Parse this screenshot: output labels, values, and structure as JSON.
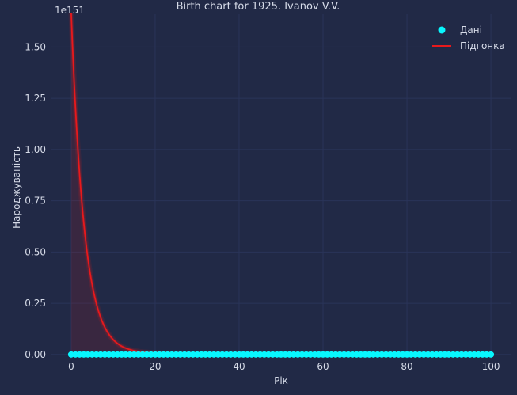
{
  "chart_data": {
    "type": "line",
    "title": "Birth chart for 1925. Ivanov V.V.",
    "xlabel": "Рік",
    "ylabel": "Народжуваність",
    "offset_text": "1e151",
    "xlim": [
      -4.7,
      104.7
    ],
    "ylim": [
      -0.02,
      1.66
    ],
    "x_ticks": [
      0,
      20,
      40,
      60,
      80,
      100
    ],
    "x_tick_labels": [
      "0",
      "20",
      "40",
      "60",
      "80",
      "100"
    ],
    "y_ticks": [
      0,
      0.25,
      0.5,
      0.75,
      1.0,
      1.25,
      1.5
    ],
    "y_tick_labels": [
      "0.00",
      "0.25",
      "0.50",
      "0.75",
      "1.00",
      "1.25",
      "1.50"
    ],
    "grid": true,
    "legend_position": "top-right",
    "series": [
      {
        "name": "Дані",
        "kind": "scatter",
        "x": [
          0,
          1,
          2,
          3,
          4,
          5,
          6,
          7,
          8,
          9,
          10,
          11,
          12,
          13,
          14,
          15,
          16,
          17,
          18,
          19,
          20,
          21,
          22,
          23,
          24,
          25,
          26,
          27,
          28,
          29,
          30,
          31,
          32,
          33,
          34,
          35,
          36,
          37,
          38,
          39,
          40,
          41,
          42,
          43,
          44,
          45,
          46,
          47,
          48,
          49,
          50,
          51,
          52,
          53,
          54,
          55,
          56,
          57,
          58,
          59,
          60,
          61,
          62,
          63,
          64,
          65,
          66,
          67,
          68,
          69,
          70,
          71,
          72,
          73,
          74,
          75,
          76,
          77,
          78,
          79,
          80,
          81,
          82,
          83,
          84,
          85,
          86,
          87,
          88,
          89,
          90,
          91,
          92,
          93,
          94,
          95,
          96,
          97,
          98,
          99,
          100
        ],
        "y_const": 0,
        "color": "#08f7fe"
      },
      {
        "name": "Підгонка",
        "kind": "line",
        "model": "exponential_decay",
        "y0": 1.66,
        "rate": 0.32,
        "asymptote": 0.005,
        "x_range": [
          0,
          100
        ],
        "color": "#e8191c"
      }
    ]
  }
}
